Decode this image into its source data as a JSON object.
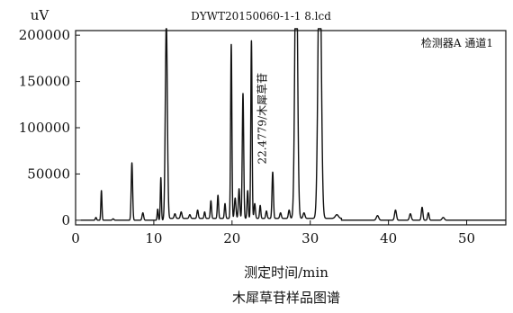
{
  "chart_data": {
    "type": "line",
    "title": "DYWT20150060-1-1 8.lcd",
    "ylabel": "uV",
    "xlabel": "测定时间/min",
    "caption": "木犀草苷样品图谱",
    "legend": "检测器A 通道1",
    "legend_position": "top-right",
    "annotation": {
      "text": "22.4779/木犀草苷",
      "x": 22.48
    },
    "xlim": [
      0,
      55
    ],
    "ylim": [
      -5000,
      205000
    ],
    "x_ticks": [
      0,
      10,
      20,
      30,
      40,
      50
    ],
    "x_tick_labels": [
      "0",
      "10",
      "20",
      "30",
      "40",
      "50"
    ],
    "y_ticks": [
      0,
      50000,
      100000,
      150000,
      200000
    ],
    "y_tick_labels": [
      "0",
      "50000",
      "100000",
      "150000",
      "200000"
    ],
    "grid": false,
    "baseline": 0,
    "peaks": [
      {
        "rt": 2.6,
        "height": 3000,
        "width": 0.08
      },
      {
        "rt": 3.3,
        "height": 32000,
        "width": 0.07
      },
      {
        "rt": 4.8,
        "height": 1500,
        "width": 0.1
      },
      {
        "rt": 7.2,
        "height": 62000,
        "width": 0.09
      },
      {
        "rt": 8.6,
        "height": 8000,
        "width": 0.1
      },
      {
        "rt": 10.5,
        "height": 12000,
        "width": 0.07
      },
      {
        "rt": 10.9,
        "height": 46000,
        "width": 0.07
      },
      {
        "rt": 11.6,
        "height": 215000,
        "width": 0.13
      },
      {
        "rt": 12.7,
        "height": 5000,
        "width": 0.1
      },
      {
        "rt": 13.5,
        "height": 7000,
        "width": 0.1
      },
      {
        "rt": 14.6,
        "height": 4000,
        "width": 0.1
      },
      {
        "rt": 15.6,
        "height": 9000,
        "width": 0.09
      },
      {
        "rt": 16.5,
        "height": 7000,
        "width": 0.08
      },
      {
        "rt": 17.3,
        "height": 19000,
        "width": 0.08
      },
      {
        "rt": 18.2,
        "height": 25000,
        "width": 0.08
      },
      {
        "rt": 19.1,
        "height": 16000,
        "width": 0.08
      },
      {
        "rt": 19.9,
        "height": 188000,
        "width": 0.08
      },
      {
        "rt": 20.4,
        "height": 22000,
        "width": 0.1
      },
      {
        "rt": 20.9,
        "height": 32000,
        "width": 0.09
      },
      {
        "rt": 21.4,
        "height": 135000,
        "width": 0.09
      },
      {
        "rt": 22.0,
        "height": 30000,
        "width": 0.08
      },
      {
        "rt": 22.48,
        "height": 192000,
        "width": 0.08
      },
      {
        "rt": 22.9,
        "height": 16000,
        "width": 0.09
      },
      {
        "rt": 23.6,
        "height": 14000,
        "width": 0.08
      },
      {
        "rt": 24.4,
        "height": 8000,
        "width": 0.09
      },
      {
        "rt": 25.2,
        "height": 50000,
        "width": 0.09
      },
      {
        "rt": 26.2,
        "height": 6000,
        "width": 0.1
      },
      {
        "rt": 27.3,
        "height": 9000,
        "width": 0.1
      },
      {
        "rt": 28.2,
        "height": 320000,
        "width": 0.17
      },
      {
        "rt": 29.2,
        "height": 6000,
        "width": 0.12
      },
      {
        "rt": 31.2,
        "height": 320000,
        "width": 0.2
      },
      {
        "rt": 33.4,
        "height": 4000,
        "width": 0.2
      },
      {
        "rt": 38.6,
        "height": 5000,
        "width": 0.15
      },
      {
        "rt": 40.9,
        "height": 11000,
        "width": 0.12
      },
      {
        "rt": 42.8,
        "height": 7000,
        "width": 0.12
      },
      {
        "rt": 44.3,
        "height": 14000,
        "width": 0.1
      },
      {
        "rt": 45.1,
        "height": 8000,
        "width": 0.1
      },
      {
        "rt": 47.0,
        "height": 3000,
        "width": 0.15
      }
    ]
  }
}
